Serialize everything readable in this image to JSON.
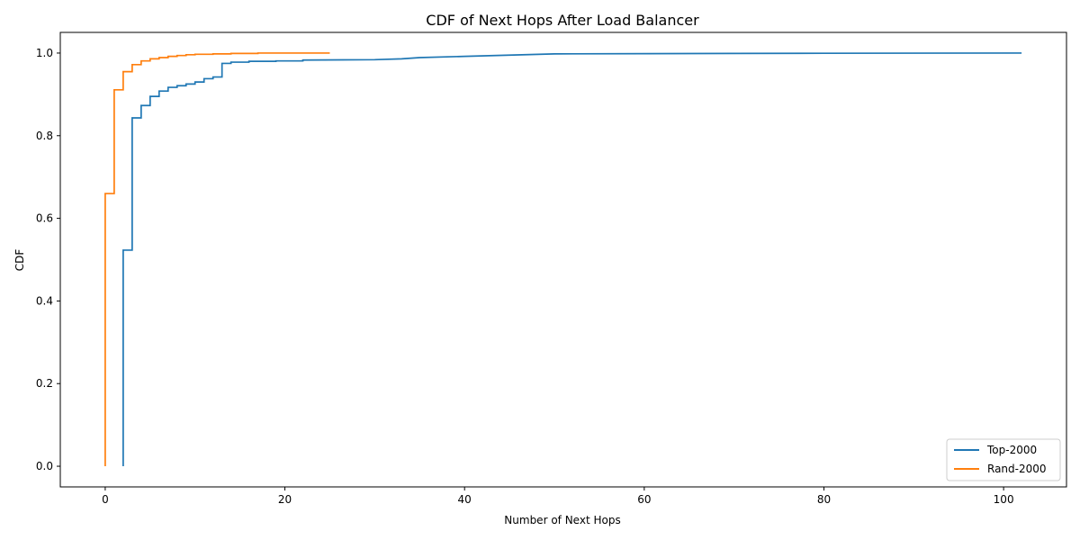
{
  "chart_data": {
    "type": "line",
    "step": "post",
    "title": "CDF of Next Hops After Load Balancer",
    "xlabel": "Number of Next Hops",
    "ylabel": "CDF",
    "xlim": [
      -5,
      107
    ],
    "ylim": [
      -0.05,
      1.05
    ],
    "xticks": [
      0,
      20,
      40,
      60,
      80,
      100
    ],
    "yticks": [
      0.0,
      0.2,
      0.4,
      0.6,
      0.8,
      1.0
    ],
    "xtick_labels": [
      "0",
      "20",
      "40",
      "60",
      "80",
      "100"
    ],
    "ytick_labels": [
      "0.0",
      "0.2",
      "0.4",
      "0.6",
      "0.8",
      "1.0"
    ],
    "grid": false,
    "legend": {
      "position": "bottom-right"
    },
    "series": [
      {
        "name": "Top-2000",
        "color": "#1f77b4",
        "points": [
          [
            2,
            0.0
          ],
          [
            2,
            0.523
          ],
          [
            3,
            0.523
          ],
          [
            3,
            0.843
          ],
          [
            4,
            0.843
          ],
          [
            4,
            0.873
          ],
          [
            5,
            0.873
          ],
          [
            5,
            0.895
          ],
          [
            6,
            0.895
          ],
          [
            6,
            0.908
          ],
          [
            7,
            0.908
          ],
          [
            7,
            0.917
          ],
          [
            8,
            0.917
          ],
          [
            8,
            0.921
          ],
          [
            9,
            0.921
          ],
          [
            9,
            0.925
          ],
          [
            10,
            0.925
          ],
          [
            10,
            0.93
          ],
          [
            11,
            0.93
          ],
          [
            11,
            0.938
          ],
          [
            12,
            0.938
          ],
          [
            12,
            0.942
          ],
          [
            13,
            0.942
          ],
          [
            13,
            0.975
          ],
          [
            14,
            0.975
          ],
          [
            14,
            0.978
          ],
          [
            16,
            0.978
          ],
          [
            16,
            0.98
          ],
          [
            19,
            0.98
          ],
          [
            19,
            0.981
          ],
          [
            22,
            0.981
          ],
          [
            22,
            0.983
          ],
          [
            30,
            0.984
          ],
          [
            33,
            0.986
          ],
          [
            35,
            0.989
          ],
          [
            40,
            0.992
          ],
          [
            45,
            0.995
          ],
          [
            50,
            0.998
          ],
          [
            60,
            0.9985
          ],
          [
            70,
            0.999
          ],
          [
            80,
            0.9995
          ],
          [
            102,
            1.0
          ]
        ]
      },
      {
        "name": "Rand-2000",
        "color": "#ff7f0e",
        "points": [
          [
            0,
            0.0
          ],
          [
            0,
            0.66
          ],
          [
            1,
            0.66
          ],
          [
            1,
            0.911
          ],
          [
            2,
            0.911
          ],
          [
            2,
            0.955
          ],
          [
            3,
            0.955
          ],
          [
            3,
            0.972
          ],
          [
            4,
            0.972
          ],
          [
            4,
            0.981
          ],
          [
            5,
            0.981
          ],
          [
            5,
            0.986
          ],
          [
            6,
            0.986
          ],
          [
            6,
            0.989
          ],
          [
            7,
            0.989
          ],
          [
            7,
            0.992
          ],
          [
            8,
            0.992
          ],
          [
            8,
            0.994
          ],
          [
            9,
            0.994
          ],
          [
            9,
            0.996
          ],
          [
            10,
            0.996
          ],
          [
            10,
            0.997
          ],
          [
            12,
            0.997
          ],
          [
            12,
            0.998
          ],
          [
            14,
            0.998
          ],
          [
            14,
            0.999
          ],
          [
            17,
            0.999
          ],
          [
            17,
            1.0
          ],
          [
            25,
            1.0
          ]
        ]
      }
    ]
  }
}
